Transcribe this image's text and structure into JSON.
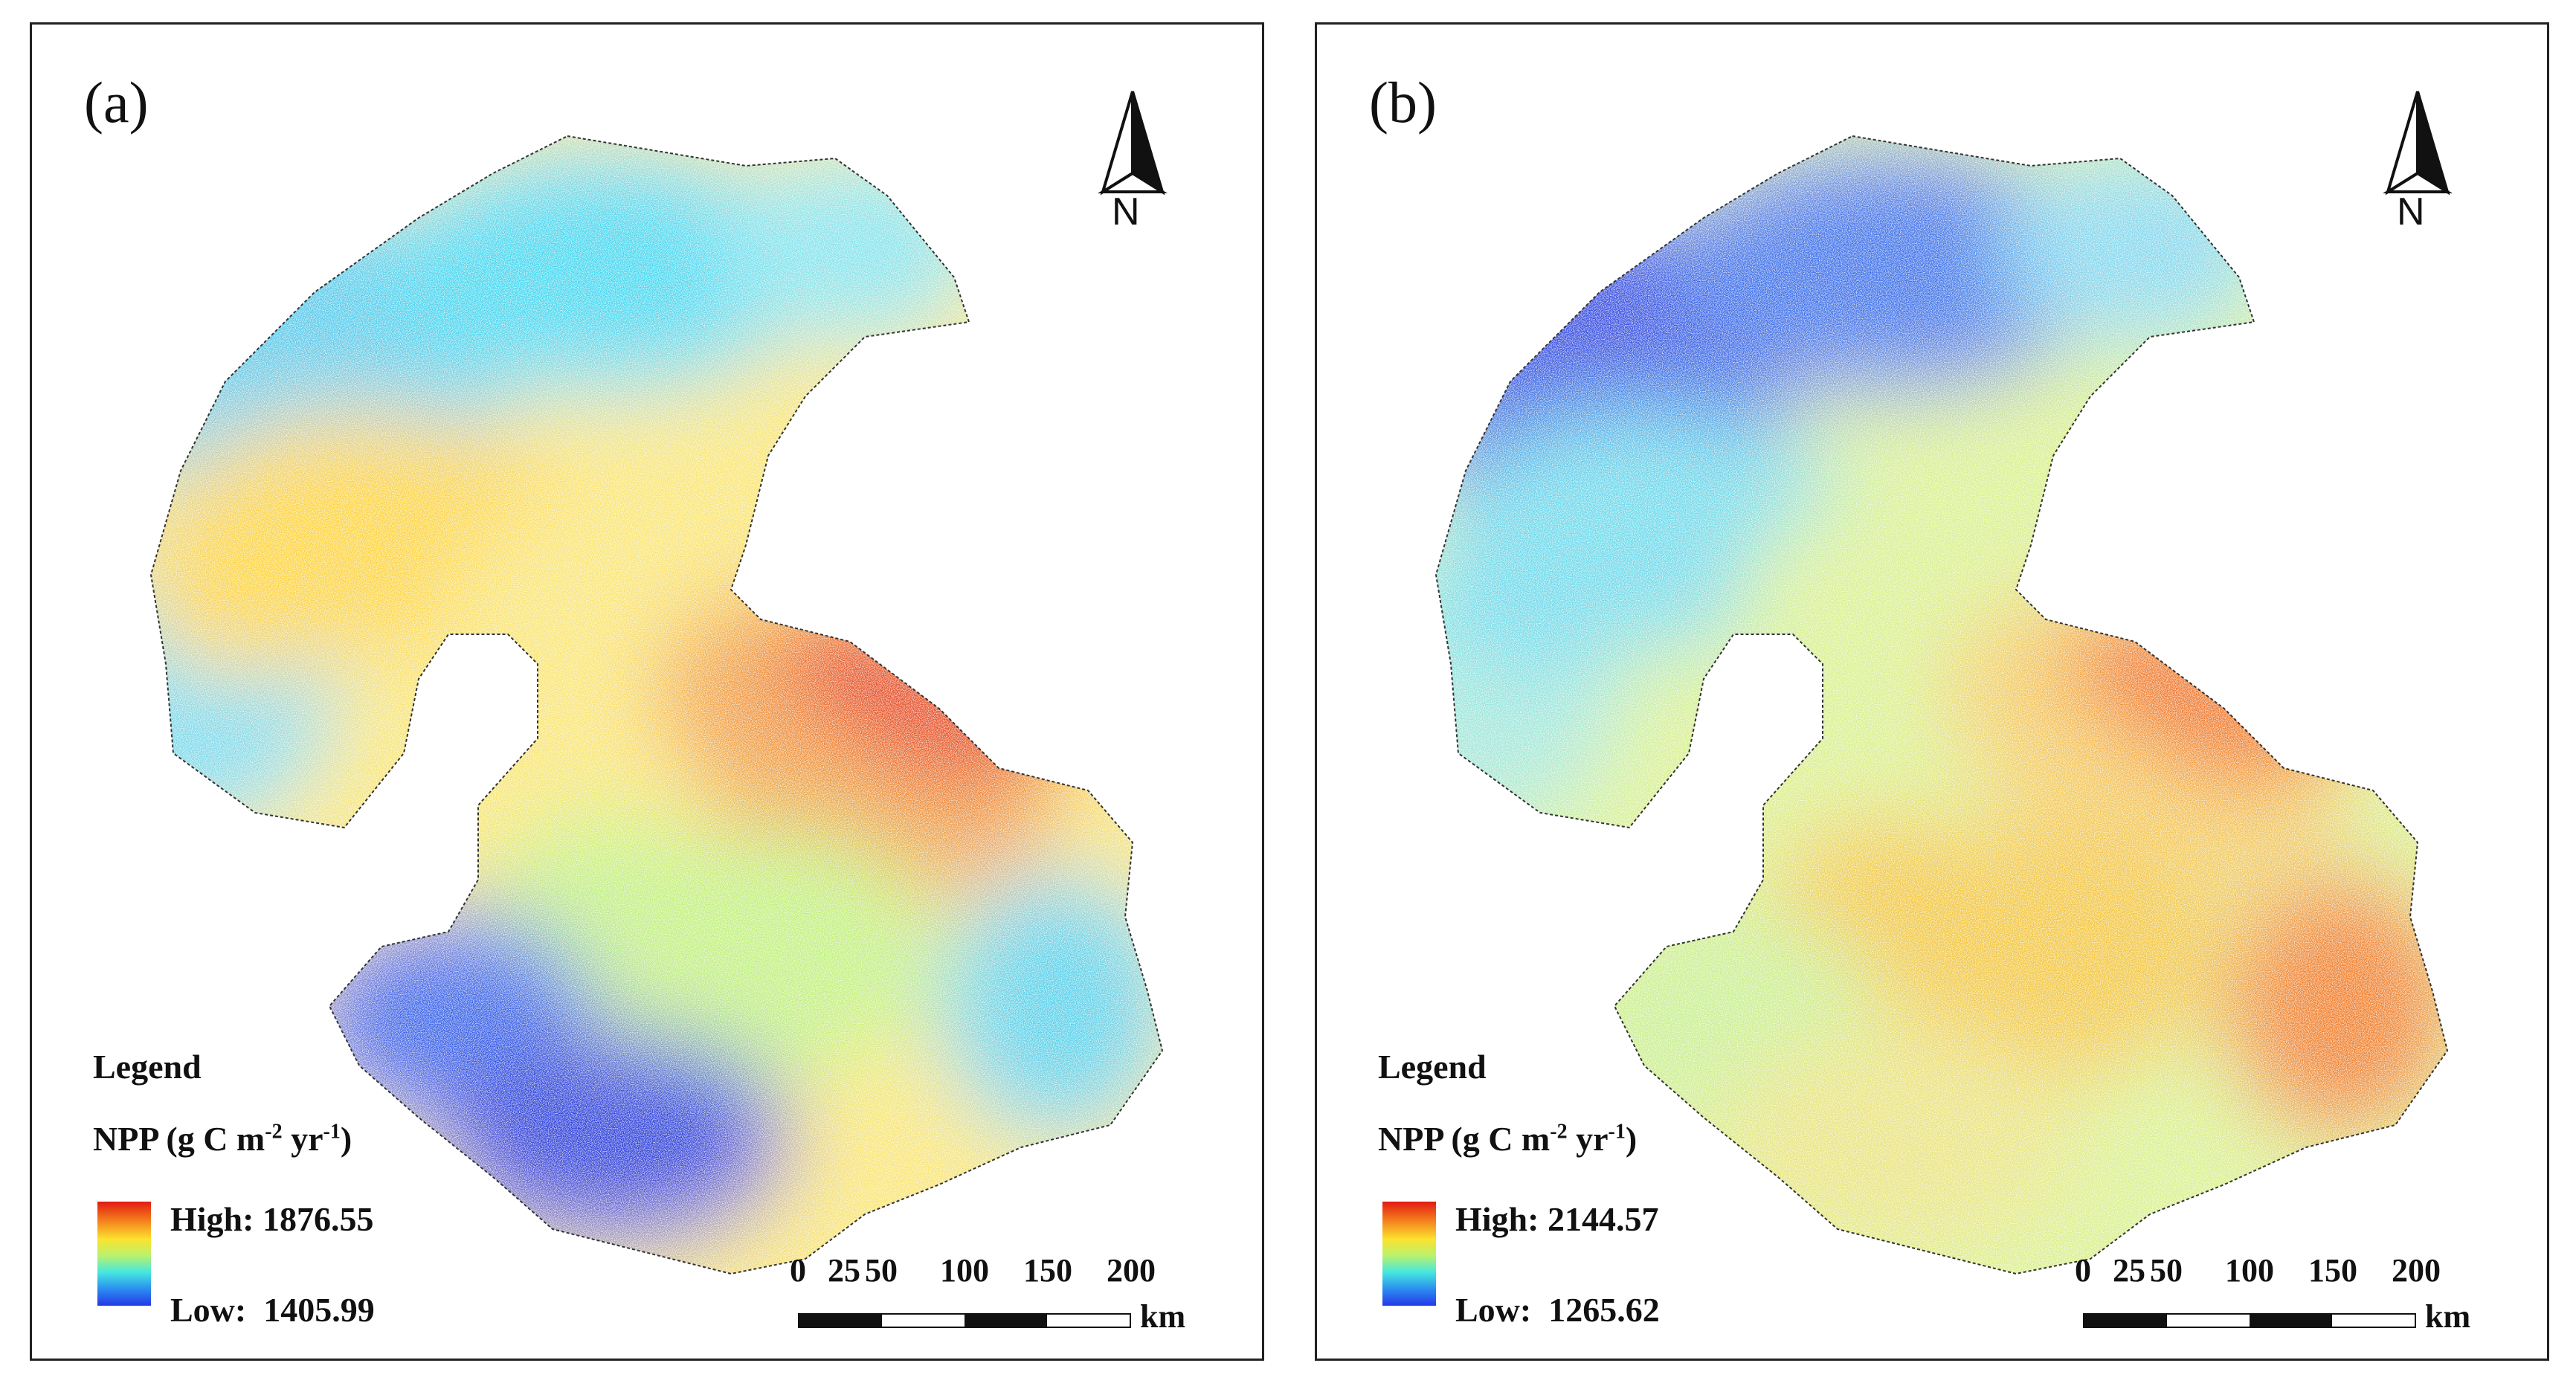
{
  "panels": [
    {
      "id": "a",
      "label": "(a)",
      "north": "N",
      "legend": {
        "title": "Legend",
        "variable": "NPP (g C m",
        "unit_exp1": "-2",
        "unit_mid": " yr",
        "unit_exp2": "-1",
        "unit_close": ")",
        "high": "High: 1876.55",
        "low": "Low:  1405.99"
      },
      "scale": {
        "ticks": [
          "0",
          "25",
          "50",
          "100",
          "150",
          "200"
        ],
        "unit": "km"
      },
      "color_ramp": [
        "#e21a12",
        "#f47e1d",
        "#fce22e",
        "#b9f26e",
        "#45e7df",
        "#2b8df0",
        "#2538e8"
      ],
      "region_colors": {
        "north_west": "#53c8ea",
        "north": "#42d6ef",
        "north_east": "#7fe2ec",
        "west_center": "#fcd23a",
        "center": "#f9e470",
        "center_east": "#f0973a",
        "east": "#e43a20",
        "south_center": "#bff07a",
        "south_west": "#3460e8",
        "south": "#2a3ed8",
        "south_east": "#55cfe9",
        "far_west": "#6fd8ee"
      }
    },
    {
      "id": "b",
      "label": "(b)",
      "north": "N",
      "legend": {
        "title": "Legend",
        "variable": "NPP (g C m",
        "unit_exp1": "-2",
        "unit_mid": " yr",
        "unit_exp2": "-1",
        "unit_close": ")",
        "high": "High: 2144.57",
        "low": "Low:  1265.62"
      },
      "scale": {
        "ticks": [
          "0",
          "25",
          "50",
          "100",
          "150",
          "200"
        ],
        "unit": "km"
      },
      "color_ramp": [
        "#e21a12",
        "#f47e1d",
        "#fce22e",
        "#b9f26e",
        "#45e7df",
        "#2b8df0",
        "#2538e8"
      ],
      "region_colors": {
        "north_west": "#3448e0",
        "north": "#3a6ee8",
        "north_east": "#7fd6ee",
        "west_center": "#6ad8ea",
        "center": "#d8f08a",
        "center_east": "#f3c85a",
        "east": "#f06a22",
        "south_center": "#f2c43a",
        "south_west": "#c6ee8c",
        "south": "#e8e27a",
        "south_east": "#f07a28",
        "far_west": "#9ee6d8"
      }
    }
  ]
}
